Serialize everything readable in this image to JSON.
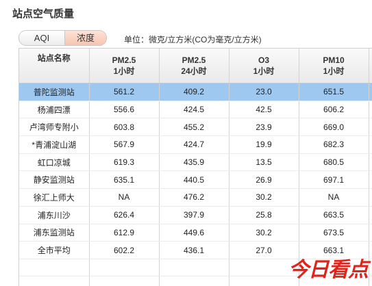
{
  "page": {
    "title": "站点空气质量"
  },
  "tabs": [
    {
      "label": "AQI",
      "active": false
    },
    {
      "label": "浓度",
      "active": true
    }
  ],
  "unit_note": "单位：微克/立方米(CO为毫克/立方米)",
  "table": {
    "headers": [
      {
        "line1": "站点名称",
        "line2": ""
      },
      {
        "line1": "PM2.5",
        "line2": "1小时"
      },
      {
        "line1": "PM2.5",
        "line2": "24小时"
      },
      {
        "line1": "O3",
        "line2": "1小时"
      },
      {
        "line1": "PM10",
        "line2": "1小时"
      }
    ],
    "rows": [
      {
        "station": "普陀监测站",
        "pm25_1h": "561.2",
        "pm25_24h": "409.2",
        "o3_1h": "23.0",
        "pm10_1h": "651.5",
        "selected": true
      },
      {
        "station": "杨浦四漂",
        "pm25_1h": "556.6",
        "pm25_24h": "424.5",
        "o3_1h": "42.5",
        "pm10_1h": "606.2"
      },
      {
        "station": "卢湾师专附小",
        "pm25_1h": "603.8",
        "pm25_24h": "455.2",
        "o3_1h": "23.9",
        "pm10_1h": "669.0"
      },
      {
        "station": "*青浦淀山湖",
        "pm25_1h": "567.9",
        "pm25_24h": "424.7",
        "o3_1h": "19.9",
        "pm10_1h": "682.3"
      },
      {
        "station": "虹口凉城",
        "pm25_1h": "619.3",
        "pm25_24h": "435.9",
        "o3_1h": "13.5",
        "pm10_1h": "680.5"
      },
      {
        "station": "静安监测站",
        "pm25_1h": "635.1",
        "pm25_24h": "440.5",
        "o3_1h": "26.9",
        "pm10_1h": "697.1"
      },
      {
        "station": "徐汇上师大",
        "pm25_1h": "NA",
        "pm25_24h": "476.2",
        "o3_1h": "30.2",
        "pm10_1h": "NA"
      },
      {
        "station": "浦东川沙",
        "pm25_1h": "626.4",
        "pm25_24h": "397.9",
        "o3_1h": "25.8",
        "pm10_1h": "663.5"
      },
      {
        "station": "浦东监测站",
        "pm25_1h": "612.9",
        "pm25_24h": "449.6",
        "o3_1h": "30.2",
        "pm10_1h": "673.5"
      },
      {
        "station": "全市平均",
        "pm25_1h": "602.2",
        "pm25_24h": "436.1",
        "o3_1h": "27.0",
        "pm10_1h": "663.1"
      }
    ]
  },
  "watermark": "今日看点"
}
